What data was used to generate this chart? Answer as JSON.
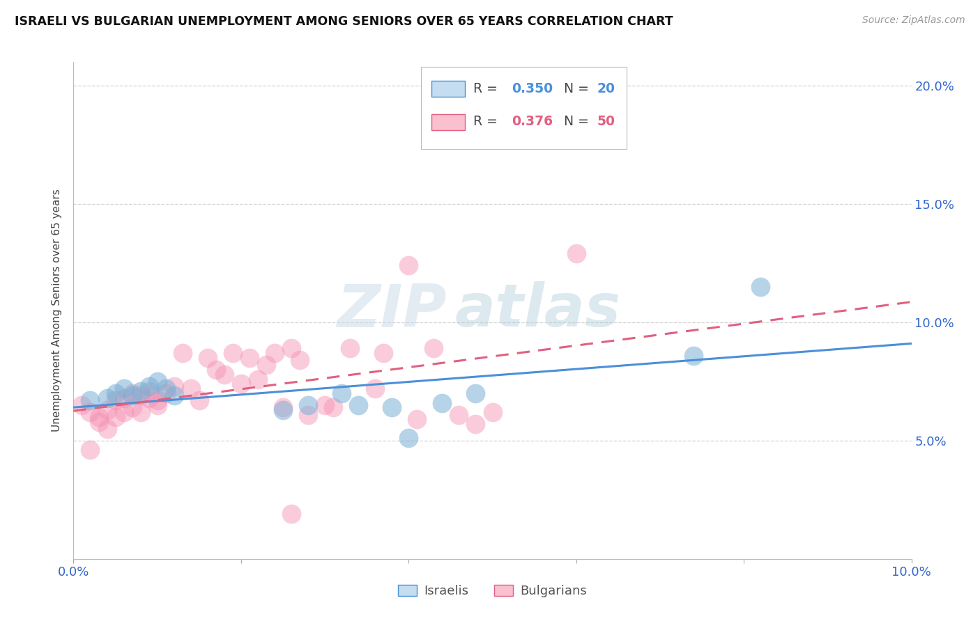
{
  "title": "ISRAELI VS BULGARIAN UNEMPLOYMENT AMONG SENIORS OVER 65 YEARS CORRELATION CHART",
  "source": "Source: ZipAtlas.com",
  "ylabel": "Unemployment Among Seniors over 65 years",
  "xlim": [
    0.0,
    0.1
  ],
  "ylim": [
    0.0,
    0.21
  ],
  "xtick_positions": [
    0.0,
    0.02,
    0.04,
    0.06,
    0.08,
    0.1
  ],
  "xtick_labels": [
    "0.0%",
    "",
    "",
    "",
    "",
    "10.0%"
  ],
  "ytick_positions": [
    0.05,
    0.1,
    0.15,
    0.2
  ],
  "ytick_labels": [
    "5.0%",
    "10.0%",
    "15.0%",
    "20.0%"
  ],
  "israeli_color": "#7bafd4",
  "bulgarian_color": "#f48fb1",
  "israeli_line_color": "#4a90d9",
  "bulgarian_line_color": "#e06080",
  "israeli_R": "0.350",
  "israeli_N": "20",
  "bulgarian_R": "0.376",
  "bulgarian_N": "50",
  "israeli_x": [
    0.002,
    0.004,
    0.005,
    0.006,
    0.007,
    0.008,
    0.009,
    0.01,
    0.011,
    0.012,
    0.025,
    0.028,
    0.032,
    0.034,
    0.038,
    0.04,
    0.044,
    0.048,
    0.074,
    0.082
  ],
  "israeli_y": [
    0.067,
    0.068,
    0.07,
    0.072,
    0.069,
    0.071,
    0.073,
    0.075,
    0.072,
    0.069,
    0.063,
    0.065,
    0.07,
    0.065,
    0.064,
    0.051,
    0.066,
    0.07,
    0.086,
    0.115
  ],
  "bulgarian_x": [
    0.001,
    0.002,
    0.003,
    0.003,
    0.004,
    0.004,
    0.005,
    0.005,
    0.006,
    0.006,
    0.007,
    0.007,
    0.008,
    0.008,
    0.009,
    0.009,
    0.01,
    0.01,
    0.011,
    0.012,
    0.013,
    0.014,
    0.015,
    0.016,
    0.017,
    0.018,
    0.019,
    0.02,
    0.021,
    0.022,
    0.023,
    0.024,
    0.025,
    0.026,
    0.027,
    0.028,
    0.03,
    0.031,
    0.033,
    0.036,
    0.037,
    0.04,
    0.041,
    0.043,
    0.046,
    0.048,
    0.05,
    0.06,
    0.002,
    0.026
  ],
  "bulgarian_y": [
    0.065,
    0.062,
    0.06,
    0.058,
    0.063,
    0.055,
    0.06,
    0.067,
    0.062,
    0.068,
    0.07,
    0.064,
    0.062,
    0.069,
    0.071,
    0.068,
    0.067,
    0.065,
    0.07,
    0.073,
    0.087,
    0.072,
    0.067,
    0.085,
    0.08,
    0.078,
    0.087,
    0.074,
    0.085,
    0.076,
    0.082,
    0.087,
    0.064,
    0.089,
    0.084,
    0.061,
    0.065,
    0.064,
    0.089,
    0.072,
    0.087,
    0.124,
    0.059,
    0.089,
    0.061,
    0.057,
    0.062,
    0.129,
    0.046,
    0.019
  ],
  "watermark_zip": "ZIP",
  "watermark_atlas": "atlas",
  "background_color": "#ffffff",
  "grid_color": "#d0d0d0",
  "tick_color": "#3366cc",
  "title_color": "#111111",
  "source_color": "#999999",
  "ylabel_color": "#444444"
}
